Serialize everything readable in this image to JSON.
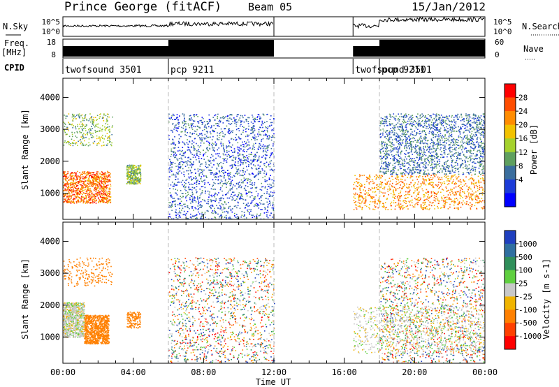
{
  "header": {
    "station": "Prince George (fitACF)",
    "beam": "Beam 05",
    "date": "15/Jan/2012"
  },
  "left_labels": {
    "nsky": "N.Sky",
    "freq": "Freq.",
    "freq_unit": "[MHz]",
    "cpid": "CPID"
  },
  "right_labels": {
    "nsearch": "N.Search",
    "nave": "Nave"
  },
  "scale_labels": {
    "noise_top": "10^5",
    "noise_bot": "10^0",
    "freq_top": "18",
    "freq_bot": "8",
    "nave_top": "60",
    "nave_bot": "0"
  },
  "cpid_segments": [
    {
      "label": "twofsound 3501",
      "start": 0.0
    },
    {
      "label": "pcp 9211",
      "start": 6.0
    },
    {
      "label": "twofsound 3501",
      "start": 16.5
    },
    {
      "label": "pcp 9211",
      "start": 18.0
    }
  ],
  "x_axis": {
    "title": "Time UT",
    "ticks": [
      "00:00",
      "04:00",
      "08:00",
      "12:00",
      "16:00",
      "20:00",
      "00:00"
    ],
    "range": [
      0,
      24
    ]
  },
  "y_axis": {
    "title": "Slant Range [km]",
    "ticks": [
      "1000",
      "2000",
      "3000",
      "4000"
    ],
    "range": [
      180,
      4600
    ]
  },
  "power_colorbar": {
    "title": "Power [dB]",
    "labels": [
      "28",
      "24",
      "20",
      "16",
      "12",
      "8",
      "4"
    ],
    "colors": [
      "#ff0000",
      "#ff4d00",
      "#ff8c00",
      "#f2c200",
      "#a5d22d",
      "#5fa05f",
      "#3a6e9e",
      "#1c3cd8",
      "#0000ff"
    ]
  },
  "velocity_colorbar": {
    "title": "Velocity [m s-1]",
    "labels": [
      "1000",
      "500",
      "100",
      "25",
      "-25",
      "-100",
      "-500",
      "-1000"
    ],
    "colors": [
      "#1f3fbf",
      "#2f6fa0",
      "#2f8f5a",
      "#5fcf3f",
      "#c8c8c8",
      "#f0b400",
      "#ff8000",
      "#ff4000",
      "#ff0000"
    ]
  },
  "chart_data": {
    "type": "heatmap",
    "x_unit": "hours UT",
    "y_unit": "km",
    "data_gaps": [
      [
        12.0,
        16.5
      ]
    ],
    "mode_changes": [
      6.0,
      12.0,
      18.0
    ],
    "power_regions": [
      {
        "t": [
          0.0,
          2.7
        ],
        "r": [
          700,
          1700
        ],
        "dB": 26
      },
      {
        "t": [
          0.0,
          2.8
        ],
        "r": [
          2500,
          3500
        ],
        "dB": 14
      },
      {
        "t": [
          3.6,
          4.4
        ],
        "r": [
          1300,
          1900
        ],
        "dB": 14
      },
      {
        "t": [
          6.0,
          12.0
        ],
        "r": [
          200,
          3500
        ],
        "dB": 6
      },
      {
        "t": [
          16.5,
          24.0
        ],
        "r": [
          500,
          1600
        ],
        "dB": 24
      },
      {
        "t": [
          18.0,
          24.0
        ],
        "r": [
          1600,
          3500
        ],
        "dB": 8
      }
    ],
    "velocity_regions": [
      {
        "t": [
          0.0,
          1.2
        ],
        "r": [
          1000,
          2100
        ],
        "v": 0
      },
      {
        "t": [
          1.2,
          2.6
        ],
        "r": [
          800,
          1700
        ],
        "v": -300
      },
      {
        "t": [
          16.5,
          24.0
        ],
        "r": [
          500,
          2000
        ],
        "v": 0
      }
    ]
  }
}
